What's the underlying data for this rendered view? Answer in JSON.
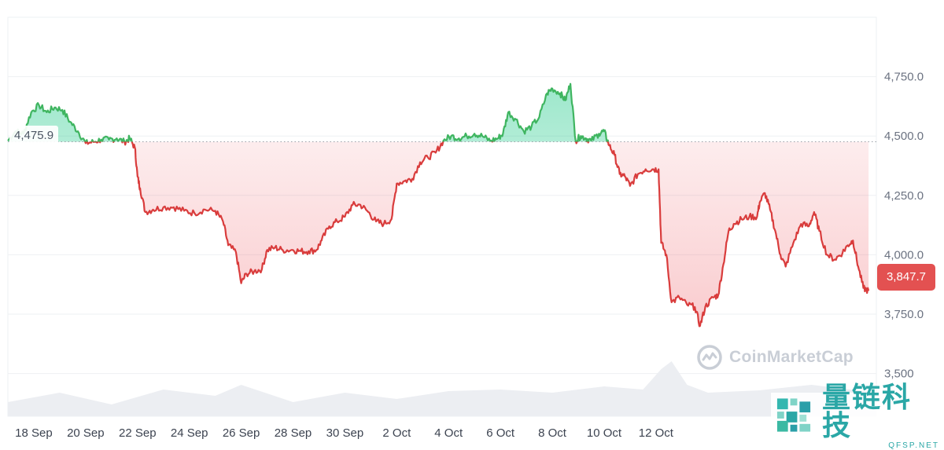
{
  "chart_data": {
    "type": "area",
    "baseline_value": 4475.9,
    "current_value": 3847.7,
    "ylim": [
      3320,
      5000
    ],
    "y_ticks": [
      3500,
      3750,
      4000,
      4250,
      4500,
      4750
    ],
    "y_tick_labels": [
      "3,500",
      "3,750.0",
      "4,000.0",
      "4,250.0",
      "4,500.0",
      "4,750.0"
    ],
    "x_ticks": [
      "18 Sep",
      "20 Sep",
      "22 Sep",
      "24 Sep",
      "26 Sep",
      "28 Sep",
      "30 Sep",
      "2 Oct",
      "4 Oct",
      "6 Oct",
      "8 Oct",
      "10 Oct",
      "12 Oct"
    ],
    "x_start_date": "17 Sep",
    "x_end_date": "14 Oct",
    "grid": true,
    "colors": {
      "above": "#16c784",
      "below": "#ea3943",
      "line_up": "#3fb560",
      "line_down": "#d93c3c"
    },
    "series": [
      {
        "values": [
          [
            17.0,
            4480
          ],
          [
            17.3,
            4520
          ],
          [
            17.6,
            4510
          ],
          [
            17.9,
            4600
          ],
          [
            18.2,
            4630
          ],
          [
            18.5,
            4600
          ],
          [
            18.8,
            4620
          ],
          [
            19.1,
            4610
          ],
          [
            19.4,
            4560
          ],
          [
            19.7,
            4520
          ],
          [
            20.0,
            4470
          ],
          [
            20.3,
            4475
          ],
          [
            20.6,
            4485
          ],
          [
            20.9,
            4485
          ],
          [
            21.2,
            4490
          ],
          [
            21.5,
            4475
          ],
          [
            21.7,
            4490
          ],
          [
            21.9,
            4450
          ],
          [
            22.0,
            4330
          ],
          [
            22.1,
            4280
          ],
          [
            22.3,
            4180
          ],
          [
            22.6,
            4190
          ],
          [
            23.0,
            4200
          ],
          [
            23.4,
            4200
          ],
          [
            23.8,
            4185
          ],
          [
            24.2,
            4175
          ],
          [
            24.6,
            4190
          ],
          [
            25.0,
            4185
          ],
          [
            25.3,
            4140
          ],
          [
            25.5,
            4040
          ],
          [
            25.8,
            4010
          ],
          [
            26.0,
            3880
          ],
          [
            26.2,
            3920
          ],
          [
            26.5,
            3930
          ],
          [
            26.8,
            3940
          ],
          [
            27.0,
            4020
          ],
          [
            27.3,
            4030
          ],
          [
            27.6,
            4020
          ],
          [
            28.0,
            4020
          ],
          [
            28.3,
            4015
          ],
          [
            28.6,
            4015
          ],
          [
            28.9,
            4020
          ],
          [
            29.1,
            4060
          ],
          [
            29.4,
            4120
          ],
          [
            29.7,
            4140
          ],
          [
            30.0,
            4160
          ],
          [
            30.3,
            4210
          ],
          [
            30.6,
            4210
          ],
          [
            30.9,
            4180
          ],
          [
            31.2,
            4140
          ],
          [
            31.5,
            4130
          ],
          [
            31.8,
            4150
          ],
          [
            32.0,
            4300
          ],
          [
            32.3,
            4310
          ],
          [
            32.6,
            4320
          ],
          [
            32.9,
            4390
          ],
          [
            33.2,
            4410
          ],
          [
            33.5,
            4430
          ],
          [
            33.8,
            4480
          ],
          [
            34.1,
            4500
          ],
          [
            34.4,
            4490
          ],
          [
            34.7,
            4500
          ],
          [
            35.0,
            4510
          ],
          [
            35.3,
            4500
          ],
          [
            35.6,
            4480
          ],
          [
            35.9,
            4490
          ],
          [
            36.1,
            4510
          ],
          [
            36.3,
            4600
          ],
          [
            36.6,
            4570
          ],
          [
            36.9,
            4520
          ],
          [
            37.2,
            4540
          ],
          [
            37.5,
            4580
          ],
          [
            37.8,
            4680
          ],
          [
            38.0,
            4700
          ],
          [
            38.3,
            4680
          ],
          [
            38.5,
            4650
          ],
          [
            38.7,
            4720
          ],
          [
            38.9,
            4480
          ],
          [
            39.1,
            4500
          ],
          [
            39.3,
            4490
          ],
          [
            39.5,
            4480
          ],
          [
            39.8,
            4510
          ],
          [
            40.0,
            4520
          ],
          [
            40.2,
            4460
          ],
          [
            40.4,
            4420
          ],
          [
            40.6,
            4340
          ],
          [
            40.8,
            4330
          ],
          [
            41.0,
            4290
          ],
          [
            41.3,
            4340
          ],
          [
            41.6,
            4360
          ],
          [
            41.9,
            4360
          ],
          [
            42.1,
            4360
          ],
          [
            42.2,
            4050
          ],
          [
            42.4,
            4000
          ],
          [
            42.6,
            3800
          ],
          [
            42.9,
            3820
          ],
          [
            43.2,
            3790
          ],
          [
            43.5,
            3780
          ],
          [
            43.7,
            3700
          ],
          [
            43.9,
            3780
          ],
          [
            44.2,
            3820
          ],
          [
            44.4,
            3830
          ],
          [
            44.6,
            3960
          ],
          [
            44.8,
            4100
          ],
          [
            45.0,
            4130
          ],
          [
            45.3,
            4150
          ],
          [
            45.6,
            4160
          ],
          [
            45.9,
            4160
          ],
          [
            46.0,
            4220
          ],
          [
            46.2,
            4260
          ],
          [
            46.4,
            4190
          ],
          [
            46.6,
            4100
          ],
          [
            46.8,
            4000
          ],
          [
            47.0,
            3950
          ],
          [
            47.3,
            4050
          ],
          [
            47.6,
            4130
          ],
          [
            47.9,
            4120
          ],
          [
            48.1,
            4180
          ],
          [
            48.3,
            4100
          ],
          [
            48.6,
            4000
          ],
          [
            48.9,
            3980
          ],
          [
            49.2,
            4010
          ],
          [
            49.4,
            4040
          ],
          [
            49.6,
            4060
          ],
          [
            49.8,
            3950
          ],
          [
            50.0,
            3860
          ],
          [
            50.2,
            3847.7
          ]
        ]
      }
    ]
  },
  "baseline_label": "4,475.9",
  "current_label": "3,847.7",
  "watermark_brand": "CoinMarketCap",
  "watermark_cn": "量链科技",
  "watermark_en": "QFSP.NET"
}
